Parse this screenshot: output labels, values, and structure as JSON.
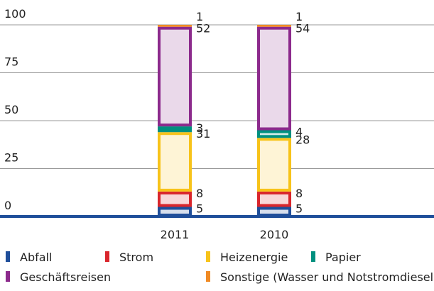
{
  "chart_data": {
    "type": "stacked_bar",
    "categories": [
      "2011",
      "2010"
    ],
    "series": [
      {
        "name": "Abfall",
        "color": "#1f4e9a",
        "values": [
          5,
          5
        ]
      },
      {
        "name": "Strom",
        "color": "#d9262c",
        "values": [
          8,
          8
        ]
      },
      {
        "name": "Heizenergie",
        "color": "#f7c31a",
        "values": [
          31,
          28
        ]
      },
      {
        "name": "Papier",
        "color": "#00907f",
        "values": [
          3,
          4
        ]
      },
      {
        "name": "Geschäftsreisen",
        "color": "#8c2a8c",
        "values": [
          52,
          54
        ]
      },
      {
        "name": "Sonstige (Wasser und Notstromdiesel",
        "color": "#f08a24",
        "values": [
          1,
          1
        ]
      }
    ],
    "ylim": [
      0,
      100
    ],
    "yticks": [
      0,
      25,
      50,
      75,
      100
    ],
    "grid": true
  }
}
